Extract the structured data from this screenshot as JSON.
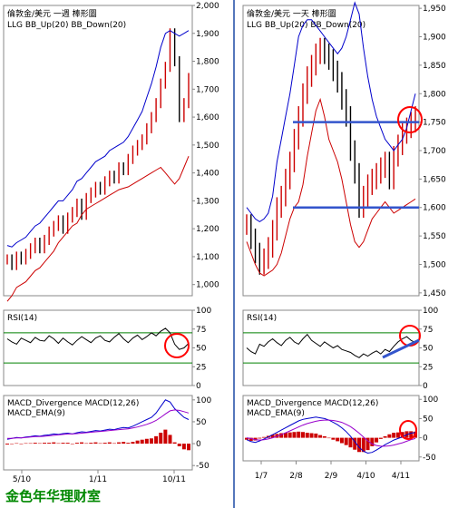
{
  "watermark": "金色年华理财室",
  "colors": {
    "bar": "#000000",
    "up_candle": "#cc0000",
    "bb_up": "#0000cc",
    "bb_down": "#cc0000",
    "rsi_line": "#000000",
    "rsi_band": "#008000",
    "macd_line": "#0000cc",
    "macd_ema": "#9900cc",
    "macd_hist": "#cc0000",
    "annotation": "#ff0000",
    "trend": "#3355cc"
  },
  "chart_data": [
    {
      "panel": "weekly-price",
      "type": "line",
      "title_lines": [
        "倫敦金/美元 一週 棒形圖",
        "LLG   BB_Up(20)   BB_Down(20)"
      ],
      "series": [
        {
          "values": [
            1090,
            1070,
            1100,
            1090,
            1110,
            1130,
            1150,
            1130,
            1160,
            1190,
            1210,
            1230,
            1200,
            1240,
            1260,
            1290,
            1250,
            1310,
            1330,
            1350,
            1340,
            1370,
            1390,
            1380,
            1420,
            1410,
            1450,
            1480,
            1500,
            1520,
            1560,
            1600,
            1650,
            1720,
            1780,
            1900,
            1800,
            1600,
            1650,
            1740
          ]
        },
        {
          "values": [
            1140,
            1135,
            1150,
            1160,
            1170,
            1190,
            1210,
            1220,
            1240,
            1260,
            1280,
            1300,
            1300,
            1320,
            1340,
            1370,
            1380,
            1400,
            1420,
            1440,
            1450,
            1460,
            1480,
            1490,
            1500,
            1510,
            1530,
            1560,
            1590,
            1620,
            1670,
            1720,
            1780,
            1850,
            1900,
            1910,
            1900,
            1890,
            1900,
            1910
          ]
        },
        {
          "values": [
            940,
            960,
            990,
            1000,
            1010,
            1030,
            1050,
            1060,
            1080,
            1100,
            1120,
            1150,
            1170,
            1190,
            1210,
            1220,
            1250,
            1270,
            1280,
            1290,
            1300,
            1310,
            1320,
            1330,
            1340,
            1345,
            1350,
            1360,
            1370,
            1380,
            1390,
            1400,
            1410,
            1420,
            1400,
            1380,
            1360,
            1380,
            1420,
            1460
          ]
        }
      ],
      "yticks": [
        "2,000",
        "1,900",
        "1,800",
        "1,700",
        "1,600",
        "1,500",
        "1,400",
        "1,300",
        "1,200",
        "1,100",
        "1,000"
      ],
      "ylim": [
        960,
        2000
      ],
      "xticks": [
        "5/10",
        "1/11",
        "10/11"
      ]
    },
    {
      "panel": "weekly-rsi",
      "type": "line",
      "label": "RSI(14)",
      "yticks": [
        "100",
        "75",
        "50",
        "25",
        "0"
      ],
      "ylim": [
        0,
        100
      ],
      "bands": [
        70,
        30
      ],
      "values": [
        62,
        58,
        55,
        63,
        60,
        57,
        64,
        60,
        59,
        66,
        62,
        56,
        63,
        58,
        54,
        60,
        65,
        61,
        57,
        63,
        66,
        60,
        58,
        64,
        69,
        62,
        57,
        63,
        67,
        61,
        65,
        70,
        66,
        72,
        76,
        70,
        55,
        48,
        50,
        56
      ]
    },
    {
      "panel": "weekly-macd",
      "type": "line",
      "labels": [
        "MACD_Divergence   MACD(12,26)",
        "MACD_EMA(9)"
      ],
      "yticks": [
        "100",
        "50",
        "0",
        "-50"
      ],
      "ylim": [
        -60,
        110
      ],
      "macd": [
        10,
        12,
        14,
        13,
        15,
        16,
        18,
        17,
        19,
        20,
        22,
        21,
        23,
        24,
        22,
        25,
        27,
        26,
        28,
        30,
        29,
        31,
        33,
        32,
        35,
        37,
        36,
        40,
        45,
        50,
        55,
        60,
        70,
        85,
        100,
        95,
        80,
        70,
        60,
        55
      ],
      "ema": [
        12,
        12,
        13,
        13,
        14,
        15,
        16,
        16,
        17,
        18,
        19,
        20,
        21,
        22,
        22,
        23,
        24,
        25,
        26,
        27,
        28,
        29,
        30,
        31,
        32,
        33,
        34,
        36,
        38,
        41,
        44,
        48,
        53,
        60,
        68,
        75,
        77,
        76,
        73,
        70
      ],
      "hist": [
        -2,
        0,
        1,
        0,
        1,
        1,
        2,
        1,
        2,
        2,
        3,
        1,
        2,
        2,
        0,
        2,
        3,
        1,
        2,
        3,
        1,
        2,
        3,
        1,
        3,
        4,
        2,
        4,
        7,
        9,
        11,
        12,
        17,
        25,
        32,
        20,
        3,
        -6,
        -13,
        -15
      ]
    },
    {
      "panel": "daily-price",
      "type": "line",
      "title_lines": [
        "倫敦金/美元 一天 棒形圖",
        "LLG   BB_Up(20)   BB_Down(20)"
      ],
      "series": [
        {
          "values": [
            1570,
            1545,
            1520,
            1500,
            1510,
            1530,
            1560,
            1600,
            1620,
            1650,
            1680,
            1720,
            1760,
            1800,
            1830,
            1850,
            1870,
            1880,
            1870,
            1860,
            1840,
            1820,
            1790,
            1760,
            1700,
            1660,
            1600,
            1620,
            1640,
            1650,
            1660,
            1670,
            1680,
            1650,
            1690,
            1710,
            1730,
            1740,
            1750,
            1760
          ]
        },
        {
          "values": [
            1600,
            1590,
            1580,
            1575,
            1580,
            1590,
            1620,
            1680,
            1720,
            1760,
            1800,
            1850,
            1900,
            1920,
            1930,
            1930,
            1920,
            1910,
            1900,
            1890,
            1880,
            1870,
            1880,
            1900,
            1930,
            1960,
            1940,
            1880,
            1830,
            1790,
            1760,
            1740,
            1720,
            1710,
            1700,
            1710,
            1720,
            1740,
            1770,
            1800
          ]
        },
        {
          "values": [
            1540,
            1520,
            1500,
            1485,
            1480,
            1485,
            1490,
            1500,
            1520,
            1550,
            1580,
            1600,
            1610,
            1640,
            1690,
            1730,
            1770,
            1790,
            1760,
            1720,
            1700,
            1680,
            1650,
            1610,
            1570,
            1540,
            1530,
            1540,
            1560,
            1580,
            1590,
            1600,
            1610,
            1600,
            1590,
            1595,
            1600,
            1605,
            1610,
            1615
          ]
        }
      ],
      "hlines": [
        1750,
        1600
      ],
      "yticks": [
        "1,950",
        "1,900",
        "1,850",
        "1,800",
        "1,750",
        "1,700",
        "1,650",
        "1,600",
        "1,550",
        "1,500",
        "1,450"
      ],
      "ylim": [
        1445,
        1955
      ],
      "xticks": [
        "1/7",
        "2/8",
        "2/9",
        "4/10",
        "4/11"
      ]
    },
    {
      "panel": "daily-rsi",
      "type": "line",
      "label": "RSI(14)",
      "yticks": [
        "100",
        "75",
        "50",
        "25",
        "0"
      ],
      "ylim": [
        0,
        100
      ],
      "bands": [
        70,
        30
      ],
      "values": [
        50,
        45,
        42,
        55,
        52,
        58,
        62,
        57,
        53,
        60,
        64,
        58,
        55,
        62,
        68,
        60,
        56,
        52,
        58,
        54,
        50,
        53,
        48,
        46,
        44,
        40,
        37,
        42,
        39,
        43,
        46,
        42,
        48,
        45,
        52,
        58,
        62,
        65,
        60,
        57
      ]
    },
    {
      "panel": "daily-macd",
      "type": "line",
      "labels": [
        "MACD_Divergence   MACD(12,26)",
        "MACD_EMA(9)"
      ],
      "yticks": [
        "100",
        "50",
        "0",
        "-50"
      ],
      "ylim": [
        -60,
        110
      ],
      "macd": [
        -5,
        -10,
        -12,
        -8,
        -3,
        2,
        8,
        14,
        20,
        26,
        32,
        38,
        44,
        48,
        50,
        52,
        54,
        52,
        50,
        46,
        40,
        34,
        26,
        16,
        4,
        -10,
        -25,
        -35,
        -40,
        -38,
        -32,
        -25,
        -18,
        -12,
        -6,
        -2,
        2,
        8,
        12,
        14
      ],
      "ema": [
        0,
        -2,
        -5,
        -6,
        -5,
        -3,
        0,
        4,
        8,
        13,
        18,
        23,
        28,
        33,
        37,
        40,
        43,
        45,
        46,
        46,
        45,
        43,
        40,
        35,
        29,
        21,
        12,
        2,
        -8,
        -16,
        -20,
        -22,
        -22,
        -21,
        -19,
        -16,
        -13,
        -9,
        -5,
        -2
      ],
      "hist": [
        -5,
        -8,
        -7,
        -2,
        2,
        5,
        8,
        10,
        12,
        13,
        14,
        15,
        16,
        15,
        13,
        12,
        11,
        7,
        4,
        0,
        -5,
        -9,
        -14,
        -19,
        -25,
        -31,
        -37,
        -37,
        -32,
        -22,
        -12,
        -3,
        4,
        9,
        13,
        14,
        15,
        17,
        17,
        16
      ]
    }
  ]
}
